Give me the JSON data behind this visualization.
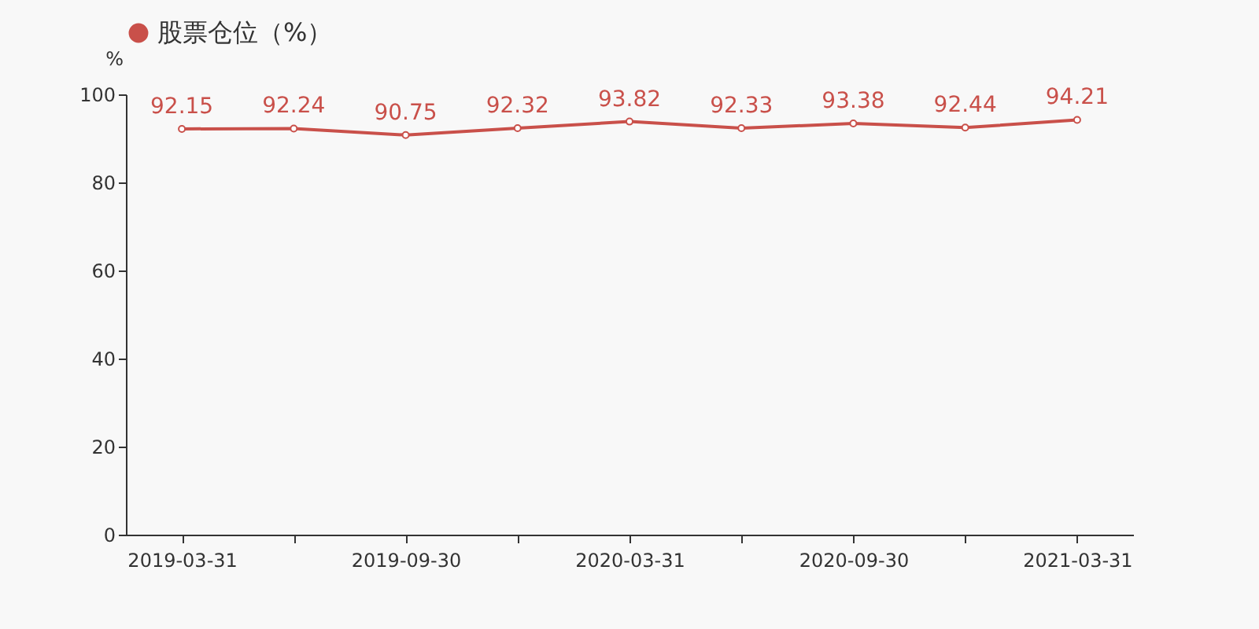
{
  "chart_data": {
    "type": "line",
    "ylabel": "%",
    "categories": [
      "2019-03-31",
      null,
      "2019-09-30",
      null,
      "2020-03-31",
      null,
      "2020-09-30",
      null,
      "2021-03-31"
    ],
    "series": [
      {
        "name": "股票仓位（%）",
        "color": "#c9504a",
        "values": [
          92.15,
          92.24,
          90.75,
          92.32,
          93.82,
          92.33,
          93.38,
          92.44,
          94.21
        ]
      }
    ],
    "ylim": [
      0,
      100
    ],
    "yticks": [
      0,
      20,
      40,
      60,
      80,
      100
    ],
    "data_labels": true,
    "legend": "top",
    "marker": "circle"
  }
}
